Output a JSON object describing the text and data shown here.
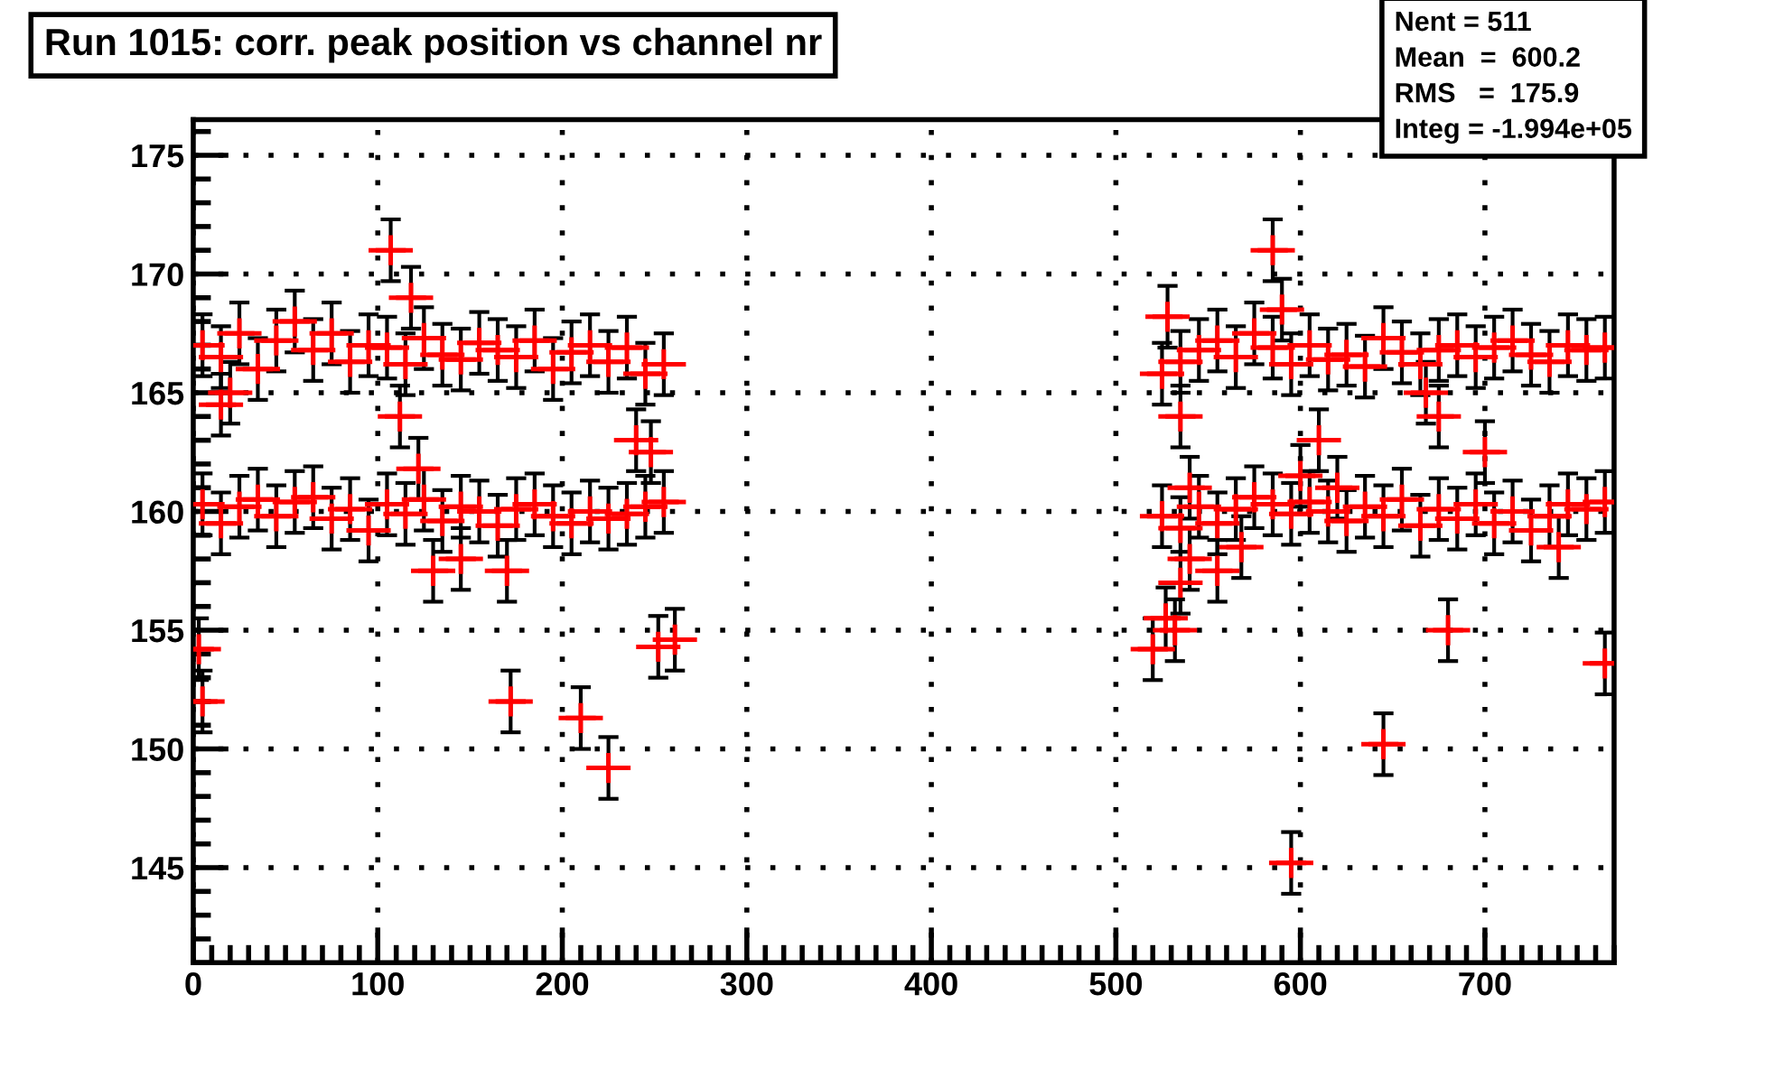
{
  "chart_data": {
    "type": "scatter",
    "title": "Run 1015: corr. peak position vs channel nr",
    "annotations": [
      "Nent = 511",
      "Mean  =  600.2",
      "RMS   =  175.9",
      "Integ = -1.994e+05"
    ],
    "xlim": [
      0,
      770
    ],
    "ylim": [
      141,
      176.5
    ],
    "xticks": [
      0,
      100,
      200,
      300,
      400,
      500,
      600,
      700
    ],
    "yticks": [
      145,
      150,
      155,
      160,
      165,
      170,
      175
    ],
    "grid": true,
    "marker": "cross",
    "series": [
      {
        "color": "#ff0000",
        "x": [
          5,
          15,
          25,
          35,
          45,
          55,
          65,
          75,
          85,
          95,
          105,
          115,
          125,
          135,
          145,
          155,
          165,
          175,
          185,
          195,
          205,
          215,
          225,
          235,
          245,
          255,
          5,
          15,
          25,
          35,
          45,
          55,
          65,
          75,
          85,
          95,
          105,
          115,
          125,
          135,
          145,
          155,
          165,
          175,
          185,
          195,
          205,
          215,
          225,
          235,
          245,
          255,
          525,
          535,
          545,
          555,
          565,
          575,
          585,
          595,
          605,
          615,
          625,
          635,
          645,
          655,
          665,
          675,
          685,
          695,
          705,
          715,
          725,
          735,
          745,
          755,
          765,
          525,
          535,
          545,
          555,
          565,
          575,
          585,
          595,
          605,
          615,
          625,
          635,
          645,
          655,
          665,
          675,
          685,
          695,
          705,
          715,
          725,
          735,
          745,
          755,
          765,
          3,
          5,
          15,
          20,
          107,
          118,
          112,
          122,
          130,
          145,
          170,
          172,
          210,
          225,
          240,
          248,
          252,
          261,
          520,
          527,
          532,
          535,
          540,
          555,
          568,
          585,
          595,
          610,
          600,
          645,
          680,
          700,
          675,
          668,
          765,
          528,
          535,
          540,
          590,
          620,
          740
        ],
        "values": [
          167,
          166.5,
          167.5,
          166,
          167.2,
          168,
          166.8,
          167.5,
          166.3,
          167,
          166.9,
          166.2,
          167.3,
          166.6,
          166.4,
          167.1,
          166.8,
          166.5,
          167.2,
          166,
          166.7,
          167,
          166.3,
          166.9,
          165.8,
          166.2,
          160.3,
          159.5,
          160.2,
          160.5,
          159.8,
          160.4,
          160.6,
          159.7,
          160.1,
          159.2,
          160.3,
          159.9,
          160.5,
          159.6,
          160.2,
          160,
          159.4,
          160.1,
          160.3,
          159.8,
          159.5,
          160,
          159.7,
          159.9,
          160.2,
          160.4,
          165.8,
          166.3,
          166.8,
          167.2,
          166.5,
          167.5,
          166.9,
          166.2,
          167,
          166.4,
          166.6,
          166.1,
          167.3,
          166.7,
          166.2,
          166.8,
          167,
          166.5,
          166.9,
          167.2,
          166.6,
          166.3,
          167,
          166.8,
          166.9,
          159.8,
          159.3,
          160.2,
          159.5,
          160.1,
          160.6,
          160.3,
          159.9,
          160.4,
          160,
          159.6,
          160.2,
          159.8,
          160.5,
          159.4,
          160.1,
          159.7,
          160.3,
          159.5,
          160,
          159.2,
          159.8,
          160.3,
          160.1,
          160.4,
          154.2,
          152,
          164.5,
          165,
          171,
          169,
          164,
          161.8,
          157.5,
          158,
          157.5,
          152,
          151.3,
          149.2,
          163,
          162.5,
          154.3,
          154.6,
          154.2,
          155.5,
          155,
          157,
          158,
          157.5,
          158.5,
          171,
          145.2,
          163,
          161.5,
          150.2,
          155,
          162.5,
          164,
          165,
          153.6,
          168.2,
          164,
          161,
          168.5,
          161,
          158.5
        ],
        "xerrors": [
          12,
          12,
          12,
          12,
          12,
          12,
          12,
          12,
          12,
          12,
          12,
          12,
          12,
          12,
          12,
          12,
          12,
          12,
          12,
          12,
          12,
          12,
          12,
          12,
          12,
          12,
          12,
          12,
          12,
          12,
          12,
          12,
          12,
          12,
          12,
          12,
          12,
          12,
          12,
          12,
          12,
          12,
          12,
          12,
          12,
          12,
          12,
          12,
          12,
          12,
          12,
          12,
          12,
          12,
          12,
          12,
          12,
          12,
          12,
          12,
          12,
          12,
          12,
          12,
          12,
          12,
          12,
          12,
          12,
          12,
          12,
          12,
          12,
          12,
          12,
          12,
          12,
          12,
          12,
          12,
          12,
          12,
          12,
          12,
          12,
          12,
          12,
          12,
          12,
          12,
          12,
          12,
          12,
          12,
          12,
          12,
          12,
          12,
          12,
          12,
          12,
          12,
          12,
          12,
          12,
          12,
          12,
          12,
          12,
          12,
          12,
          12,
          12,
          12,
          12,
          12,
          12,
          12,
          12,
          12,
          12,
          12,
          12,
          12,
          12,
          12,
          12,
          12,
          12,
          12,
          12,
          12,
          12,
          12,
          12,
          12,
          12,
          12,
          12,
          12,
          12,
          12,
          12
        ],
        "errors": [
          1.3,
          1.3,
          1.3,
          1.3,
          1.3,
          1.3,
          1.3,
          1.3,
          1.3,
          1.3,
          1.3,
          1.3,
          1.3,
          1.3,
          1.3,
          1.3,
          1.3,
          1.3,
          1.3,
          1.3,
          1.3,
          1.3,
          1.3,
          1.3,
          1.3,
          1.3,
          1.3,
          1.3,
          1.3,
          1.3,
          1.3,
          1.3,
          1.3,
          1.3,
          1.3,
          1.3,
          1.3,
          1.3,
          1.3,
          1.3,
          1.3,
          1.3,
          1.3,
          1.3,
          1.3,
          1.3,
          1.3,
          1.3,
          1.3,
          1.3,
          1.3,
          1.3,
          1.3,
          1.3,
          1.3,
          1.3,
          1.3,
          1.3,
          1.3,
          1.3,
          1.3,
          1.3,
          1.3,
          1.3,
          1.3,
          1.3,
          1.3,
          1.3,
          1.3,
          1.3,
          1.3,
          1.3,
          1.3,
          1.3,
          1.3,
          1.3,
          1.3,
          1.3,
          1.3,
          1.3,
          1.3,
          1.3,
          1.3,
          1.3,
          1.3,
          1.3,
          1.3,
          1.3,
          1.3,
          1.3,
          1.3,
          1.3,
          1.3,
          1.3,
          1.3,
          1.3,
          1.3,
          1.3,
          1.3,
          1.3,
          1.3,
          1.3,
          1.3,
          1.3,
          1.3,
          1.3,
          1.3,
          1.3,
          1.3,
          1.3,
          1.3,
          1.3,
          1.3,
          1.3,
          1.3,
          1.3,
          1.3,
          1.3,
          1.3,
          1.3,
          1.3,
          1.3,
          1.3,
          1.3,
          1.3,
          1.3,
          1.3,
          1.3,
          1.3,
          1.3,
          1.3,
          1.3,
          1.3,
          1.3,
          1.3,
          1.3,
          1.3,
          1.3,
          1.3,
          1.3,
          1.3,
          1.3,
          1.3
        ]
      }
    ]
  }
}
